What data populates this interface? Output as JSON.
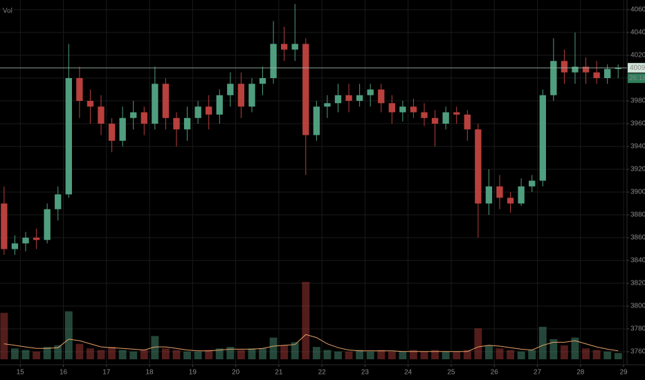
{
  "chart_data": {
    "type": "candlestick",
    "volume_label": "Vol",
    "x": [
      14.625,
      14.875,
      15.125,
      15.375,
      15.625,
      15.875,
      16.125,
      16.375,
      16.625,
      16.875,
      17.125,
      17.375,
      17.625,
      17.875,
      18.125,
      18.375,
      18.625,
      18.875,
      19.125,
      19.375,
      19.625,
      19.875,
      20.125,
      20.375,
      20.625,
      20.875,
      21.125,
      21.375,
      21.625,
      21.875,
      22.125,
      22.375,
      22.625,
      22.875,
      23.125,
      23.375,
      23.625,
      23.875,
      24.125,
      24.375,
      24.625,
      24.875,
      25.125,
      25.375,
      25.625,
      25.875,
      26.125,
      26.375,
      26.625,
      26.875,
      27.125,
      27.375,
      27.625,
      27.875,
      28.125,
      28.375,
      28.625,
      28.875
    ],
    "open": [
      3890,
      3850,
      3855,
      3860,
      3858,
      3885,
      3898,
      4000,
      3980,
      3975,
      3960,
      3945,
      3965,
      3970,
      3960,
      3995,
      3965,
      3955,
      3965,
      3975,
      3968,
      3985,
      3995,
      3975,
      3995,
      4000,
      4030,
      4025,
      4030,
      3950,
      3975,
      3978,
      3985,
      3980,
      3985,
      3990,
      3978,
      3970,
      3975,
      3970,
      3965,
      3960,
      3970,
      3968,
      3955,
      3890,
      3905,
      3895,
      3890,
      3905,
      3910,
      3985,
      4015,
      4005,
      4010,
      4005,
      4000,
      4008
    ],
    "high": [
      3905,
      3862,
      3865,
      3868,
      3890,
      3905,
      4030,
      4010,
      3990,
      3985,
      3965,
      3975,
      3980,
      3975,
      4010,
      4000,
      3970,
      3975,
      3980,
      3985,
      3990,
      4005,
      4005,
      4000,
      4010,
      4050,
      4045,
      4065,
      4035,
      3980,
      3985,
      3995,
      3995,
      3995,
      3995,
      3995,
      3985,
      3980,
      3982,
      3978,
      3972,
      3975,
      3975,
      3972,
      3960,
      3920,
      3915,
      3900,
      3912,
      3915,
      3990,
      4035,
      4025,
      4040,
      4018,
      4015,
      4012,
      4012
    ],
    "low": [
      3845,
      3845,
      3848,
      3850,
      3855,
      3875,
      3895,
      3965,
      3960,
      3950,
      3935,
      3940,
      3955,
      3950,
      3955,
      3955,
      3940,
      3945,
      3960,
      3955,
      3960,
      3975,
      3965,
      3970,
      3985,
      3995,
      4015,
      4015,
      3915,
      3945,
      3965,
      3970,
      3970,
      3975,
      3975,
      3970,
      3960,
      3962,
      3965,
      3958,
      3940,
      3955,
      3960,
      3945,
      3860,
      3880,
      3885,
      3882,
      3888,
      3900,
      3905,
      3980,
      3995,
      3995,
      3995,
      3995,
      3995,
      4000
    ],
    "close": [
      3850,
      3855,
      3860,
      3858,
      3885,
      3898,
      4000,
      3980,
      3975,
      3960,
      3945,
      3965,
      3970,
      3960,
      3995,
      3965,
      3955,
      3965,
      3975,
      3968,
      3985,
      3995,
      3975,
      3995,
      4000,
      4030,
      4025,
      4030,
      3950,
      3975,
      3978,
      3985,
      3980,
      3985,
      3990,
      3978,
      3970,
      3975,
      3970,
      3965,
      3960,
      3970,
      3968,
      3955,
      3890,
      3905,
      3895,
      3890,
      3905,
      3910,
      3985,
      4015,
      4005,
      4010,
      4005,
      4000,
      4008,
      4009
    ],
    "volume": [
      60,
      14,
      12,
      10,
      16,
      18,
      62,
      20,
      14,
      12,
      16,
      12,
      10,
      12,
      30,
      14,
      12,
      10,
      10,
      12,
      14,
      16,
      12,
      14,
      14,
      28,
      18,
      22,
      100,
      16,
      12,
      10,
      10,
      12,
      10,
      12,
      10,
      10,
      12,
      10,
      12,
      10,
      10,
      12,
      40,
      18,
      14,
      12,
      10,
      12,
      42,
      26,
      18,
      28,
      14,
      12,
      10,
      8
    ],
    "volume_ma": [
      20,
      18,
      16,
      14,
      14,
      15,
      26,
      24,
      20,
      16,
      15,
      14,
      13,
      12,
      16,
      16,
      14,
      12,
      11,
      11,
      12,
      13,
      13,
      13,
      14,
      17,
      18,
      19,
      32,
      28,
      20,
      15,
      12,
      11,
      11,
      11,
      11,
      10,
      10,
      10,
      10,
      10,
      10,
      10,
      16,
      18,
      17,
      15,
      13,
      12,
      18,
      22,
      22,
      24,
      20,
      16,
      13,
      11
    ],
    "xlim": [
      14.53,
      29.08
    ],
    "xticks": [
      15,
      16,
      17,
      18,
      19,
      20,
      21,
      22,
      23,
      24,
      25,
      26,
      27,
      28,
      29
    ],
    "ylim": [
      3748.5,
      4068.5
    ],
    "yticks": [
      3760,
      3780,
      3800,
      3820,
      3840,
      3860,
      3880,
      3900,
      3920,
      3940,
      3960,
      3980,
      4000,
      4020,
      4040,
      4060
    ],
    "last_price": 4009,
    "countdown": "26:18",
    "up_color": "#4f9e7f",
    "down_color": "#b8403d",
    "ma_color": "#e8a268",
    "grid": true
  }
}
